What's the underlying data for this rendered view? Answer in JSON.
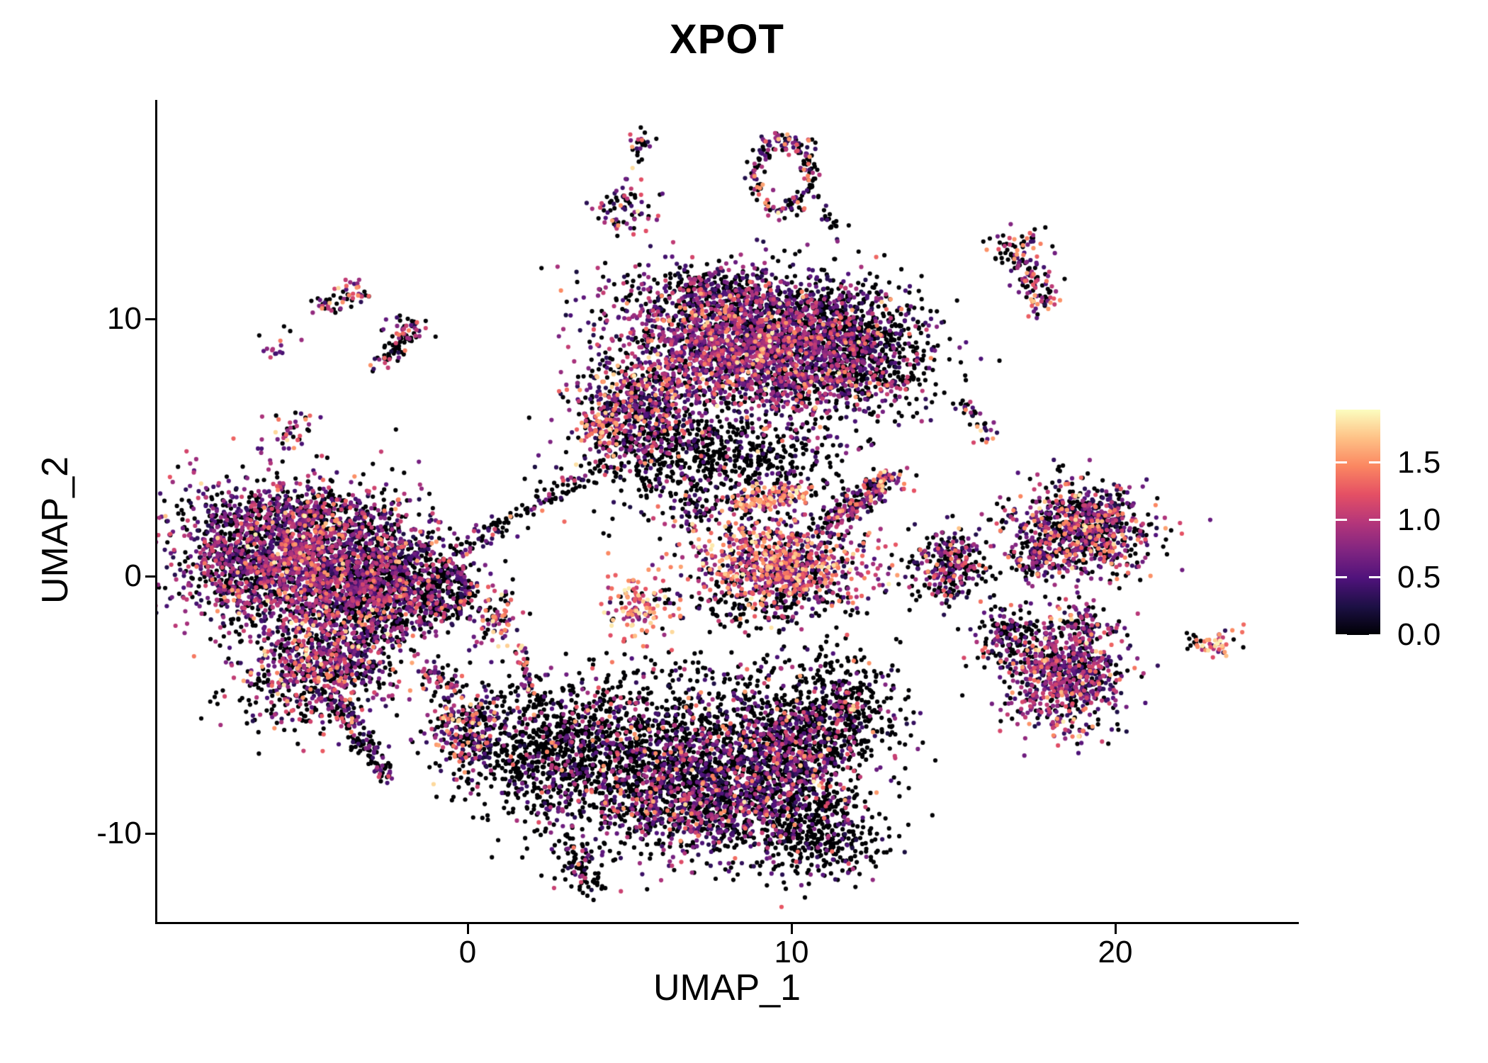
{
  "title": "XPOT",
  "chart_data": {
    "type": "scatter",
    "title": "XPOT",
    "xlabel": "UMAP_1",
    "ylabel": "UMAP_2",
    "xlim": [
      -9.58,
      25.6
    ],
    "ylim": [
      -13.47,
      18.46
    ],
    "grid": false,
    "x_ticks": [
      {
        "label": "0",
        "value": 0
      },
      {
        "label": "10",
        "value": 10
      },
      {
        "label": "20",
        "value": 20
      }
    ],
    "y_ticks": [
      {
        "label": "10",
        "value": 10
      },
      {
        "label": "0",
        "value": 0
      },
      {
        "label": "-10",
        "value": -10
      }
    ],
    "legend": {
      "position": "right",
      "vmin": 0,
      "vmax": 1.96,
      "tick_labels": [
        {
          "label": "0.0",
          "value": 0.0
        },
        {
          "label": "0.5",
          "value": 0.5
        },
        {
          "label": "1.0",
          "value": 1.0
        },
        {
          "label": "1.5",
          "value": 1.5
        }
      ],
      "colormap": "magma",
      "colors": [
        "#000004",
        "#1C1044",
        "#4F127B",
        "#812581",
        "#B5367A",
        "#E55064",
        "#FB8761",
        "#FEC287",
        "#FCFDBF"
      ]
    },
    "point_radius_px": 3.1,
    "expression_classes": {
      "z": [
        0,
        0
      ],
      "l": [
        0.22,
        0.7
      ],
      "m": [
        0.72,
        1.15
      ],
      "h": [
        1.18,
        1.62
      ],
      "v": [
        1.65,
        1.92
      ]
    },
    "expression_mixes": {
      "darker": [
        0.8,
        0.13,
        0.05,
        0.02,
        0.0
      ],
      "dark": [
        0.6,
        0.25,
        0.11,
        0.04,
        0.0
      ],
      "purple": [
        0.3,
        0.34,
        0.29,
        0.06,
        0.01
      ],
      "mixed": [
        0.42,
        0.25,
        0.21,
        0.1,
        0.02
      ],
      "bright": [
        0.22,
        0.18,
        0.28,
        0.26,
        0.06
      ],
      "hot": [
        0.1,
        0.12,
        0.22,
        0.44,
        0.12
      ]
    },
    "clusters": [
      {
        "name": "island-top-tiny",
        "type": "blob",
        "x": 5.3,
        "y": 16.75,
        "sx": 0.24,
        "sy": 0.36,
        "rot": 0,
        "n": 26,
        "mix": "dark"
      },
      {
        "name": "island-top-small",
        "type": "blob",
        "x": 4.86,
        "y": 14.35,
        "sx": 0.44,
        "sy": 0.52,
        "rot": -20,
        "n": 70,
        "mix": "mixed"
      },
      {
        "name": "ring-island",
        "type": "ring",
        "x": 9.76,
        "y": 15.59,
        "rx": 0.88,
        "ry": 1.32,
        "th": 0.18,
        "n": 190,
        "mix": "mixed"
      },
      {
        "name": "ring-tail",
        "type": "line",
        "x1": 10.61,
        "y1": 14.35,
        "x2": 11.64,
        "y2": 13.31,
        "jitter": 0.14,
        "n": 16,
        "mix": "darker"
      },
      {
        "name": "island-b1",
        "type": "blob",
        "x": -4.25,
        "y": 10.58,
        "sx": 0.26,
        "sy": 0.25,
        "rot": 0,
        "n": 26,
        "mix": "mixed"
      },
      {
        "name": "island-b2",
        "type": "blob",
        "x": -3.52,
        "y": 11.1,
        "sx": 0.28,
        "sy": 0.25,
        "rot": 0,
        "n": 30,
        "mix": "bright"
      },
      {
        "name": "hammer-head",
        "type": "blob",
        "x": -1.9,
        "y": 9.64,
        "sx": 0.33,
        "sy": 0.25,
        "rot": -20,
        "n": 38,
        "mix": "mixed"
      },
      {
        "name": "hammer-handle",
        "type": "line",
        "x1": -2.8,
        "y1": 8.13,
        "x2": -1.75,
        "y2": 9.45,
        "jitter": 0.15,
        "n": 55,
        "mix": "darker"
      },
      {
        "name": "island-d",
        "type": "blob",
        "x": -5.36,
        "y": 5.7,
        "sx": 0.26,
        "sy": 0.41,
        "rot": -30,
        "n": 34,
        "mix": "bright"
      },
      {
        "name": "island-left-tiny",
        "type": "blob",
        "x": -5.95,
        "y": 8.98,
        "sx": 0.22,
        "sy": 0.3,
        "rot": 0,
        "n": 15,
        "mix": "mixed"
      },
      {
        "name": "top-cluster-core",
        "type": "blob",
        "x": 8.75,
        "y": 8.9,
        "sx": 1.97,
        "sy": 1.32,
        "rot": -10,
        "n": 2600,
        "mix": "purple"
      },
      {
        "name": "top-cluster-right",
        "type": "blob",
        "x": 11.71,
        "y": 9.04,
        "sx": 1.2,
        "sy": 1.24,
        "rot": 0,
        "n": 900,
        "mix": "dark"
      },
      {
        "name": "top-cluster-left-lobe",
        "type": "blob",
        "x": 5.21,
        "y": 6.36,
        "sx": 0.98,
        "sy": 0.99,
        "rot": 15,
        "n": 650,
        "mix": "mixed"
      },
      {
        "name": "top-cluster-bottom",
        "type": "blob",
        "x": 7.55,
        "y": 4.77,
        "sx": 1.86,
        "sy": 0.77,
        "rot": 0,
        "n": 500,
        "mix": "darker"
      },
      {
        "name": "top-cluster-topedge",
        "type": "blob",
        "x": 8.32,
        "y": 10.96,
        "sx": 1.64,
        "sy": 0.5,
        "rot": -5,
        "n": 300,
        "mix": "dark"
      },
      {
        "name": "pink-spot",
        "type": "blob",
        "x": 4.05,
        "y": 5.59,
        "sx": 0.28,
        "sy": 0.33,
        "rot": 0,
        "n": 42,
        "mix": "hot"
      },
      {
        "name": "top-cluster-scatter",
        "type": "blob",
        "x": 7.88,
        "y": 3.39,
        "sx": 2.41,
        "sy": 0.83,
        "rot": 0,
        "n": 170,
        "mix": "darker"
      },
      {
        "name": "bridge-diagonal",
        "type": "line",
        "x1": -0.92,
        "y1": 0.58,
        "x2": 4.2,
        "y2": 4.3,
        "jitter": 0.2,
        "n": 130,
        "mix": "darker"
      },
      {
        "name": "c-ring-cluster",
        "type": "ring",
        "x": -0.61,
        "y": -0.55,
        "rx": 0.59,
        "ry": 0.74,
        "th": 0.3,
        "n": 230,
        "mix": "dark"
      },
      {
        "name": "island-orange",
        "type": "blob",
        "x": 0.88,
        "y": -1.52,
        "sx": 0.35,
        "sy": 0.55,
        "rot": 0,
        "n": 80,
        "mix": "bright"
      },
      {
        "name": "pink-strand",
        "type": "line",
        "x1": 1.69,
        "y1": -2.73,
        "x2": 1.88,
        "y2": -4.46,
        "jitter": 0.11,
        "n": 38,
        "mix": "bright"
      },
      {
        "name": "island-small-black",
        "type": "blob",
        "x": -3.63,
        "y": -3.44,
        "sx": 0.33,
        "sy": 0.3,
        "rot": 0,
        "n": 30,
        "mix": "mixed"
      },
      {
        "name": "island-elongated",
        "type": "line",
        "x1": -1.27,
        "y1": -3.77,
        "x2": -0.04,
        "y2": -4.46,
        "jitter": 0.18,
        "n": 55,
        "mix": "mixed"
      },
      {
        "name": "mid-bright-cluster",
        "type": "blob",
        "x": 5.3,
        "y": -1.16,
        "sx": 0.57,
        "sy": 0.66,
        "rot": 0,
        "n": 130,
        "mix": "hot"
      },
      {
        "name": "left-cluster-main",
        "type": "blob",
        "x": -4.86,
        "y": 0.5,
        "sx": 2.08,
        "sy": 1.43,
        "rot": -15,
        "n": 2600,
        "mix": "purple"
      },
      {
        "name": "left-cluster-right-dark",
        "type": "blob",
        "x": -2.63,
        "y": -0.47,
        "sx": 0.98,
        "sy": 1.16,
        "rot": 0,
        "n": 700,
        "mix": "dark"
      },
      {
        "name": "left-cluster-top-dark",
        "type": "blob",
        "x": -5.25,
        "y": 2.42,
        "sx": 1.53,
        "sy": 0.5,
        "rot": 0,
        "n": 300,
        "mix": "dark"
      },
      {
        "name": "left-cluster-lower",
        "type": "blob",
        "x": -4.38,
        "y": -3.36,
        "sx": 1.09,
        "sy": 1.05,
        "rot": 0,
        "n": 700,
        "mix": "mixed"
      },
      {
        "name": "left-cluster-tail",
        "type": "line",
        "x1": -4.16,
        "y1": -4.88,
        "x2": -2.52,
        "y2": -7.77,
        "jitter": 0.22,
        "n": 150,
        "mix": "dark"
      },
      {
        "name": "left-cluster-west-rim",
        "type": "blob",
        "x": -7.22,
        "y": 0.36,
        "sx": 0.55,
        "sy": 1.1,
        "rot": 0,
        "n": 200,
        "mix": "dark"
      },
      {
        "name": "left-cluster-sparse",
        "type": "blob",
        "x": -5.69,
        "y": -5.15,
        "sx": 0.98,
        "sy": 0.69,
        "rot": 0,
        "n": 80,
        "mix": "darker"
      },
      {
        "name": "tiny-pair",
        "type": "blob",
        "x": -6.67,
        "y": -4.05,
        "sx": 0.22,
        "sy": 0.19,
        "rot": 0,
        "n": 12,
        "mix": "mixed"
      },
      {
        "name": "seahorse-body",
        "type": "blob",
        "x": 9.63,
        "y": 0.5,
        "sx": 1.36,
        "sy": 0.83,
        "rot": -8,
        "n": 900,
        "mix": "bright"
      },
      {
        "name": "seahorse-band",
        "type": "line",
        "x1": 8.32,
        "y1": 2.78,
        "x2": 10.39,
        "y2": 3.25,
        "jitter": 0.25,
        "n": 140,
        "mix": "hot"
      },
      {
        "name": "seahorse-neck",
        "type": "line",
        "x1": 10.94,
        "y1": 1.87,
        "x2": 12.91,
        "y2": 3.66,
        "jitter": 0.28,
        "n": 230,
        "mix": "mixed"
      },
      {
        "name": "seahorse-tip",
        "type": "blob",
        "x": 13.02,
        "y": 3.72,
        "sx": 0.26,
        "sy": 0.22,
        "rot": 0,
        "n": 28,
        "mix": "hot"
      },
      {
        "name": "seahorse-fringe",
        "type": "blob",
        "x": 9.19,
        "y": -1.02,
        "sx": 1.53,
        "sy": 0.5,
        "rot": 0,
        "n": 150,
        "mix": "darker"
      },
      {
        "name": "pocket-cluster",
        "type": "blob",
        "x": 7.0,
        "y": 2.51,
        "sx": 0.44,
        "sy": 0.36,
        "rot": 0,
        "n": 55,
        "mix": "dark"
      },
      {
        "name": "midright-cluster",
        "type": "blob",
        "x": 14.99,
        "y": 0.36,
        "sx": 0.63,
        "sy": 0.72,
        "rot": 0,
        "n": 260,
        "mix": "dark"
      },
      {
        "name": "midright-sprinkle",
        "type": "blob",
        "x": 14.88,
        "y": 0.5,
        "sx": 0.55,
        "sy": 0.61,
        "rot": 0,
        "n": 45,
        "mix": "bright"
      },
      {
        "name": "chain-small",
        "type": "line",
        "x1": 15.14,
        "y1": 6.8,
        "x2": 16.46,
        "y2": 5.18,
        "jitter": 0.15,
        "n": 34,
        "mix": "mixed"
      },
      {
        "name": "right-island-a",
        "type": "blob",
        "x": 17.07,
        "y": 12.7,
        "sx": 0.48,
        "sy": 0.41,
        "rot": -15,
        "n": 65,
        "mix": "mixed"
      },
      {
        "name": "right-island-b",
        "type": "blob",
        "x": 17.4,
        "y": 11.51,
        "sx": 0.33,
        "sy": 0.47,
        "rot": 0,
        "n": 55,
        "mix": "mixed"
      },
      {
        "name": "right-island-c",
        "type": "blob",
        "x": 17.79,
        "y": 10.77,
        "sx": 0.31,
        "sy": 0.28,
        "rot": 0,
        "n": 32,
        "mix": "bright"
      },
      {
        "name": "right1-main",
        "type": "blob",
        "x": 19.0,
        "y": 1.87,
        "sx": 1.05,
        "sy": 0.83,
        "rot": -10,
        "n": 850,
        "mix": "mixed"
      },
      {
        "name": "right1-tail",
        "type": "blob",
        "x": 17.59,
        "y": 0.55,
        "sx": 0.37,
        "sy": 0.39,
        "rot": 0,
        "n": 110,
        "mix": "mixed"
      },
      {
        "name": "right-chain",
        "type": "blob",
        "x": 16.81,
        "y": -2.4,
        "sx": 0.57,
        "sy": 0.61,
        "rot": 0,
        "n": 150,
        "mix": "dark"
      },
      {
        "name": "right-chain-sprinkle",
        "type": "blob",
        "x": 16.81,
        "y": -2.26,
        "sx": 0.48,
        "sy": 0.5,
        "rot": 0,
        "n": 20,
        "mix": "bright"
      },
      {
        "name": "right2-main",
        "type": "blob",
        "x": 18.53,
        "y": -3.77,
        "sx": 0.88,
        "sy": 1.1,
        "rot": 0,
        "n": 800,
        "mix": "purple"
      },
      {
        "name": "right2-tip",
        "type": "blob",
        "x": 19.08,
        "y": -1.74,
        "sx": 0.26,
        "sy": 0.28,
        "rot": 0,
        "n": 40,
        "mix": "dark"
      },
      {
        "name": "far-right-island",
        "type": "blob",
        "x": 23.11,
        "y": -2.62,
        "sx": 0.39,
        "sy": 0.22,
        "rot": 20,
        "n": 45,
        "mix": "hot"
      },
      {
        "name": "far-right-dots",
        "type": "blob",
        "x": 22.36,
        "y": -2.56,
        "sx": 0.26,
        "sy": 0.28,
        "rot": 0,
        "n": 10,
        "mix": "darker"
      },
      {
        "name": "bottom-left-tip",
        "type": "blob",
        "x": 0.04,
        "y": -5.98,
        "sx": 0.66,
        "sy": 0.94,
        "rot": 0,
        "n": 280,
        "mix": "dark"
      },
      {
        "name": "bottom-left-bright",
        "type": "blob",
        "x": -0.11,
        "y": -5.98,
        "sx": 0.55,
        "sy": 0.83,
        "rot": 0,
        "n": 50,
        "mix": "hot"
      },
      {
        "name": "bottom-left-mid",
        "type": "blob",
        "x": 2.74,
        "y": -6.94,
        "sx": 1.2,
        "sy": 1.32,
        "rot": 0,
        "n": 800,
        "mix": "darker"
      },
      {
        "name": "bottom-center",
        "type": "blob",
        "x": 6.02,
        "y": -8.04,
        "sx": 1.53,
        "sy": 1.43,
        "rot": 0,
        "n": 1100,
        "mix": "dark"
      },
      {
        "name": "bottom-right",
        "type": "blob",
        "x": 9.3,
        "y": -7.36,
        "sx": 1.42,
        "sy": 1.6,
        "rot": 0,
        "n": 1100,
        "mix": "dark"
      },
      {
        "name": "bottom-right-low",
        "type": "blob",
        "x": 10.72,
        "y": -9.97,
        "sx": 1.09,
        "sy": 0.88,
        "rot": 0,
        "n": 450,
        "mix": "darker"
      },
      {
        "name": "bottom-arm",
        "type": "blob",
        "x": 11.49,
        "y": -5.15,
        "sx": 0.98,
        "sy": 1.1,
        "rot": 0,
        "n": 420,
        "mix": "darker"
      },
      {
        "name": "bottom-arm-sprinkle",
        "type": "blob",
        "x": 11.49,
        "y": -4.88,
        "sx": 0.88,
        "sy": 0.83,
        "rot": 0,
        "n": 45,
        "mix": "bright"
      },
      {
        "name": "bottom-purple-patch1",
        "type": "blob",
        "x": 7.22,
        "y": -9.01,
        "sx": 0.88,
        "sy": 0.83,
        "rot": 0,
        "n": 250,
        "mix": "purple"
      },
      {
        "name": "bottom-purple-patch2",
        "type": "blob",
        "x": 10.07,
        "y": -6.8,
        "sx": 0.77,
        "sy": 0.83,
        "rot": 0,
        "n": 220,
        "mix": "purple"
      },
      {
        "name": "bottom-tail",
        "type": "line",
        "x1": 3.06,
        "y1": -10.25,
        "x2": 3.83,
        "y2": -12.26,
        "jitter": 0.26,
        "n": 90,
        "mix": "darker"
      },
      {
        "name": "bottom-sprinkle",
        "type": "blob",
        "x": 6.35,
        "y": -7.91,
        "sx": 2.63,
        "sy": 1.93,
        "rot": 0,
        "n": 120,
        "mix": "bright"
      },
      {
        "name": "bottom-top-fringe",
        "type": "blob",
        "x": 5.25,
        "y": -5.43,
        "sx": 1.75,
        "sy": 0.69,
        "rot": 0,
        "n": 200,
        "mix": "darker"
      },
      {
        "name": "bottom-scatter-above",
        "type": "blob",
        "x": 7.44,
        "y": -4.05,
        "sx": 1.97,
        "sy": 0.83,
        "rot": 0,
        "n": 90,
        "mix": "darker"
      },
      {
        "name": "top-cluster-east-scatter",
        "type": "blob",
        "x": 13.79,
        "y": 8.07,
        "sx": 0.66,
        "sy": 1.1,
        "rot": 0,
        "n": 60,
        "mix": "darker"
      }
    ]
  }
}
